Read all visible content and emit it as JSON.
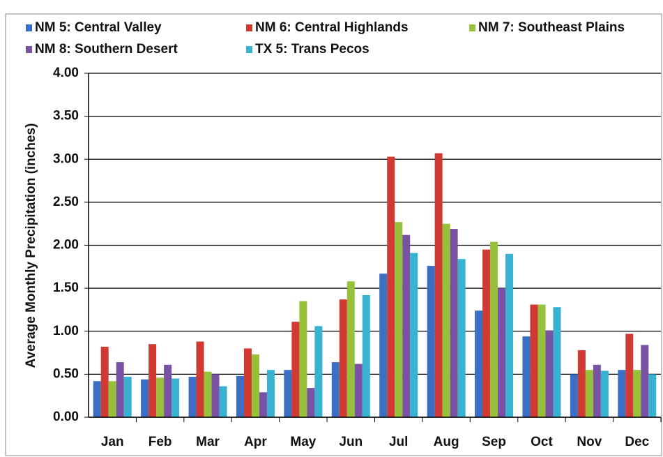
{
  "chart_data": {
    "type": "bar",
    "y_axis_label": "Average Monthly Precipitation (inches)",
    "categories": [
      "Jan",
      "Feb",
      "Mar",
      "Apr",
      "May",
      "Jun",
      "Jul",
      "Aug",
      "Sep",
      "Oct",
      "Nov",
      "Dec"
    ],
    "series": [
      {
        "name": "NM 5: Central Valley",
        "color": "#3a6fc4",
        "values": [
          0.42,
          0.44,
          0.47,
          0.48,
          0.55,
          0.64,
          1.67,
          1.76,
          1.24,
          0.94,
          0.5,
          0.55
        ]
      },
      {
        "name": "NM 6: Central Highlands",
        "color": "#d03a33",
        "values": [
          0.82,
          0.85,
          0.88,
          0.8,
          1.11,
          1.37,
          3.03,
          3.07,
          1.95,
          1.31,
          0.78,
          0.97
        ]
      },
      {
        "name": "NM 7: Southeast Plains",
        "color": "#97c13b",
        "values": [
          0.42,
          0.46,
          0.53,
          0.73,
          1.35,
          1.58,
          2.27,
          2.25,
          2.04,
          1.31,
          0.55,
          0.55
        ]
      },
      {
        "name": "NM 8: Southern Desert",
        "color": "#7a52a3",
        "values": [
          0.64,
          0.61,
          0.5,
          0.29,
          0.34,
          0.62,
          2.12,
          2.19,
          1.5,
          1.01,
          0.61,
          0.84
        ]
      },
      {
        "name": "TX 5: Trans Pecos",
        "color": "#38b2d0",
        "values": [
          0.47,
          0.45,
          0.36,
          0.55,
          1.06,
          1.42,
          1.91,
          1.84,
          1.9,
          1.28,
          0.54,
          0.5
        ]
      }
    ],
    "ylim": [
      0,
      4
    ],
    "yticks": [
      {
        "value": 0,
        "label": "0.00"
      },
      {
        "value": 0.5,
        "label": "0.50"
      },
      {
        "value": 1,
        "label": "1.00"
      },
      {
        "value": 1.5,
        "label": "1.50"
      },
      {
        "value": 2,
        "label": "2.00"
      },
      {
        "value": 2.5,
        "label": "2.50"
      },
      {
        "value": 3,
        "label": "3.00"
      },
      {
        "value": 3.5,
        "label": "3.50"
      },
      {
        "value": 4,
        "label": "4.00"
      }
    ],
    "grid": true,
    "legend": "top"
  }
}
